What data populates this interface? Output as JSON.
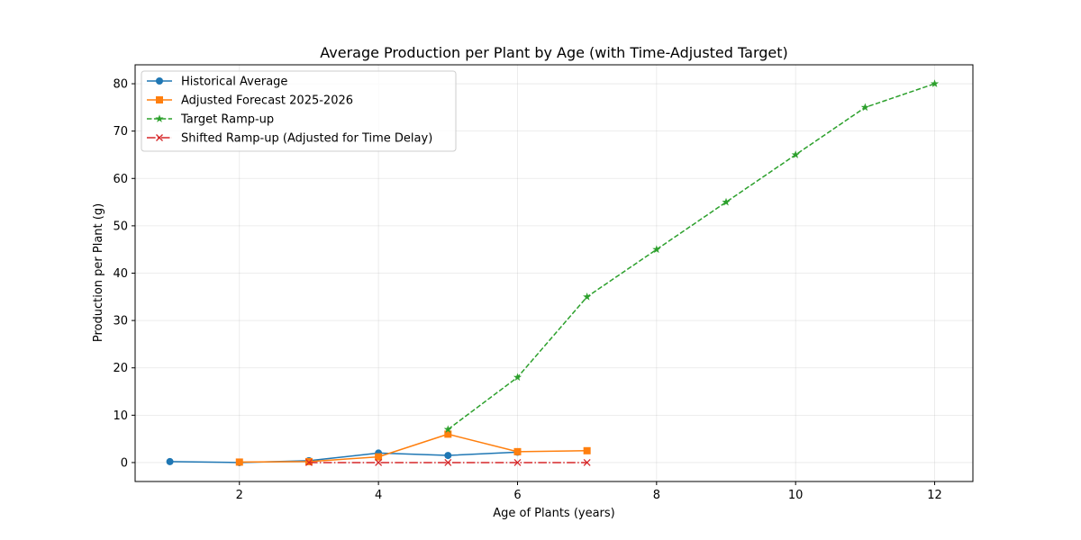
{
  "chart_data": {
    "type": "line",
    "title": "Average Production per Plant by Age (with Time-Adjusted Target)",
    "xlabel": "Age of Plants (years)",
    "ylabel": "Production per Plant (g)",
    "xlim": [
      0.5,
      12.55
    ],
    "ylim": [
      -4.0,
      84.0
    ],
    "xticks": [
      2,
      4,
      6,
      8,
      10,
      12
    ],
    "yticks": [
      0,
      10,
      20,
      30,
      40,
      50,
      60,
      70,
      80
    ],
    "grid": true,
    "legend_position": "top-left",
    "series": [
      {
        "name": "Historical Average",
        "color": "#1f77b4",
        "line_style": "solid",
        "marker": "circle",
        "x": [
          1,
          2,
          3,
          4,
          5,
          6
        ],
        "y": [
          0.2,
          0.0,
          0.4,
          2.0,
          1.5,
          2.2
        ]
      },
      {
        "name": "Adjusted Forecast 2025-2026",
        "color": "#ff7f0e",
        "line_style": "solid",
        "marker": "square",
        "x": [
          2,
          3,
          4,
          5,
          6,
          7
        ],
        "y": [
          0.1,
          0.2,
          1.2,
          6.0,
          2.3,
          2.5
        ]
      },
      {
        "name": "Target Ramp-up",
        "color": "#2ca02c",
        "line_style": "dashed",
        "marker": "star",
        "x": [
          5,
          6,
          7,
          8,
          9,
          10,
          11,
          12
        ],
        "y": [
          7,
          18,
          35,
          45,
          55,
          65,
          75,
          80
        ]
      },
      {
        "name": "Shifted Ramp-up (Adjusted for Time Delay)",
        "color": "#d62728",
        "line_style": "dashdot",
        "marker": "x",
        "x": [
          3,
          4,
          5,
          6,
          7
        ],
        "y": [
          0,
          0,
          0,
          0,
          0
        ]
      }
    ]
  }
}
